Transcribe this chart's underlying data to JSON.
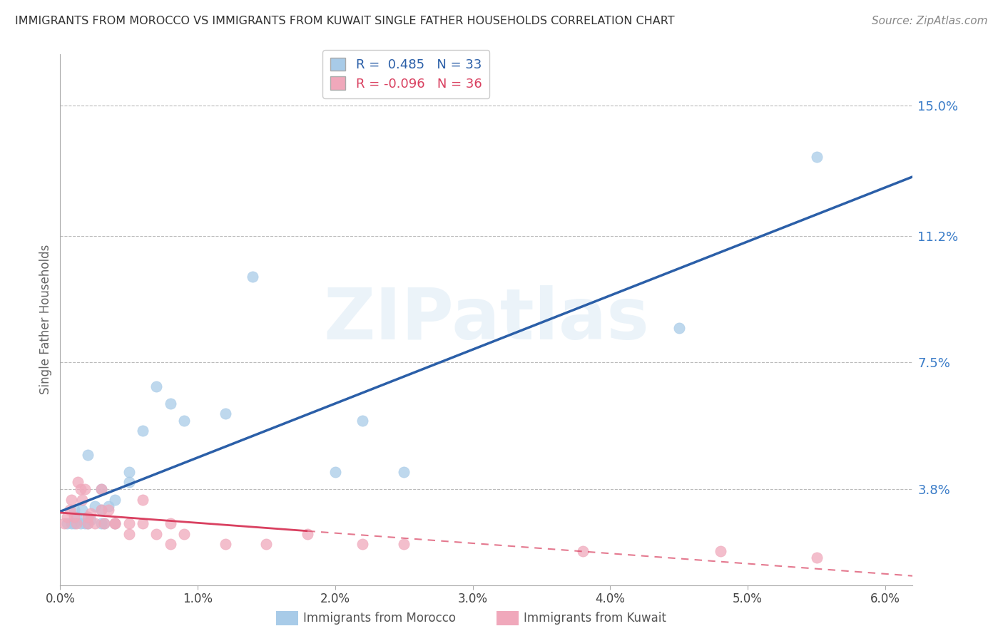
{
  "title": "IMMIGRANTS FROM MOROCCO VS IMMIGRANTS FROM KUWAIT SINGLE FATHER HOUSEHOLDS CORRELATION CHART",
  "source": "Source: ZipAtlas.com",
  "ylabel": "Single Father Households",
  "xlabel": "",
  "legend_morocco": "Immigrants from Morocco",
  "legend_kuwait": "Immigrants from Kuwait",
  "R_morocco": 0.485,
  "N_morocco": 33,
  "R_kuwait": -0.096,
  "N_kuwait": 36,
  "xlim": [
    0.0,
    0.062
  ],
  "ylim": [
    0.01,
    0.165
  ],
  "yticks": [
    0.038,
    0.075,
    0.112,
    0.15
  ],
  "ytick_labels": [
    "3.8%",
    "7.5%",
    "11.2%",
    "15.0%"
  ],
  "xticks": [
    0.0,
    0.01,
    0.02,
    0.03,
    0.04,
    0.05,
    0.06
  ],
  "xtick_labels": [
    "0.0%",
    "1.0%",
    "2.0%",
    "3.0%",
    "4.0%",
    "5.0%",
    "6.0%"
  ],
  "color_morocco": "#A8CBE8",
  "color_kuwait": "#F0A8BB",
  "color_trend_morocco": "#2B5FA8",
  "color_trend_kuwait": "#D94060",
  "background_color": "#FFFFFF",
  "watermark_text": "ZIPatlas",
  "morocco_x": [
    0.0005,
    0.0008,
    0.001,
    0.001,
    0.0012,
    0.0015,
    0.0016,
    0.0018,
    0.002,
    0.002,
    0.002,
    0.0022,
    0.0025,
    0.003,
    0.003,
    0.003,
    0.0032,
    0.0035,
    0.004,
    0.004,
    0.005,
    0.005,
    0.006,
    0.007,
    0.008,
    0.009,
    0.012,
    0.014,
    0.02,
    0.022,
    0.025,
    0.045,
    0.055
  ],
  "morocco_y": [
    0.028,
    0.028,
    0.028,
    0.032,
    0.03,
    0.028,
    0.032,
    0.028,
    0.028,
    0.03,
    0.048,
    0.029,
    0.033,
    0.032,
    0.038,
    0.028,
    0.028,
    0.033,
    0.028,
    0.035,
    0.04,
    0.043,
    0.055,
    0.068,
    0.063,
    0.058,
    0.06,
    0.1,
    0.043,
    0.058,
    0.043,
    0.085,
    0.135
  ],
  "kuwait_x": [
    0.0003,
    0.0005,
    0.0007,
    0.0008,
    0.001,
    0.0012,
    0.0013,
    0.0015,
    0.0016,
    0.0018,
    0.002,
    0.002,
    0.0022,
    0.0025,
    0.003,
    0.003,
    0.0032,
    0.0035,
    0.004,
    0.004,
    0.005,
    0.005,
    0.006,
    0.006,
    0.007,
    0.008,
    0.008,
    0.009,
    0.012,
    0.015,
    0.018,
    0.022,
    0.025,
    0.038,
    0.048,
    0.055
  ],
  "kuwait_y": [
    0.028,
    0.03,
    0.032,
    0.035,
    0.03,
    0.028,
    0.04,
    0.038,
    0.035,
    0.038,
    0.028,
    0.03,
    0.031,
    0.028,
    0.032,
    0.038,
    0.028,
    0.032,
    0.028,
    0.028,
    0.028,
    0.025,
    0.035,
    0.028,
    0.025,
    0.028,
    0.022,
    0.025,
    0.022,
    0.022,
    0.025,
    0.022,
    0.022,
    0.02,
    0.02,
    0.018
  ]
}
